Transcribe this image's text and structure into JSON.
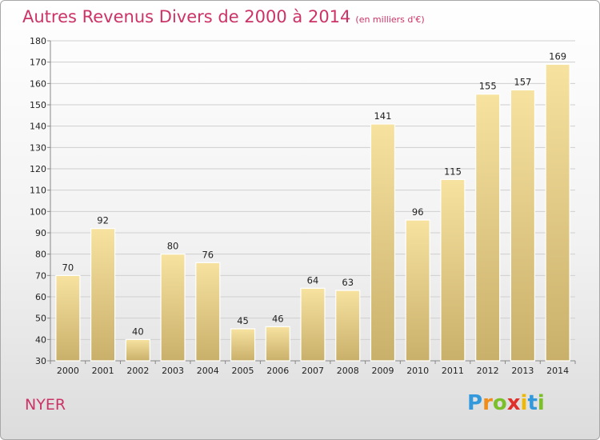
{
  "title": "Autres Revenus Divers de 2000 à 2014",
  "subtitle": "(en milliers d'€)",
  "town": "NYER",
  "brand": {
    "text": "Proxiti",
    "letters": [
      "P",
      "r",
      "o",
      "x",
      "i",
      "t",
      "i"
    ],
    "colors": [
      "#3399dd",
      "#f08c1a",
      "#7bbf2a",
      "#e0302a",
      "#f0b800",
      "#3399dd",
      "#7bbf2a"
    ]
  },
  "chart_data": {
    "type": "bar",
    "categories": [
      "2000",
      "2001",
      "2002",
      "2003",
      "2004",
      "2005",
      "2006",
      "2007",
      "2008",
      "2009",
      "2010",
      "2011",
      "2012",
      "2013",
      "2014"
    ],
    "values": [
      70,
      92,
      40,
      80,
      76,
      45,
      46,
      64,
      63,
      141,
      96,
      115,
      155,
      157,
      169
    ],
    "title": "Autres Revenus Divers de 2000 à 2014",
    "subtitle": "(en milliers d'€)",
    "xlabel": "",
    "ylabel": "",
    "ylim": [
      30,
      180
    ],
    "yticks": [
      30,
      40,
      50,
      60,
      70,
      80,
      90,
      100,
      110,
      120,
      130,
      140,
      150,
      160,
      170,
      180
    ],
    "grid": true,
    "bar_color_light": "#f7e2a0",
    "bar_color_dark": "#c9b06a",
    "axis_color": "#888888",
    "grid_color": "#cfcfcf"
  }
}
